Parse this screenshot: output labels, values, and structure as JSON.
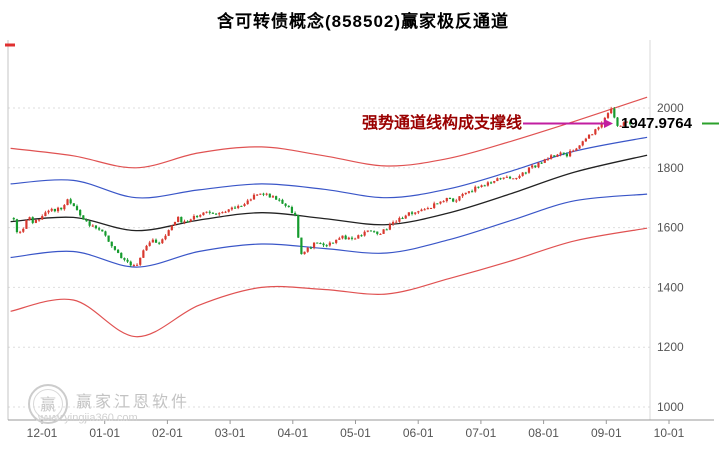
{
  "title": "含可转债概念(858502)赢家极反通道",
  "annotation": {
    "text": "强势通道线构成支撑线",
    "price_label": "1947.9764"
  },
  "watermark": {
    "brand": "赢家江恩软件",
    "url": "www.yingjia360.com",
    "logo_glyph": "赢"
  },
  "chart_data": {
    "type": "candlestick",
    "title": "含可转债概念(858502)赢家极反通道",
    "x_axis": {
      "tick_labels": [
        "12-01",
        "01-01",
        "02-01",
        "03-01",
        "04-01",
        "05-01",
        "06-01",
        "07-01",
        "08-01",
        "09-01",
        "10-01"
      ],
      "unit": "month index (0 = 12-01)"
    },
    "y_axis": {
      "tick_labels": [
        2000,
        1800,
        1600,
        1400,
        1200,
        1000
      ],
      "range": [
        1000,
        2050
      ]
    },
    "grid": "dotted-horizontal",
    "current_price": 1947.9764,
    "n_candles": 196,
    "t_range": [
      -0.45,
      9.38
    ],
    "candle_colors": {
      "up": "#d8382e",
      "down": "#169b2e"
    },
    "close_keypoints": [
      [
        -0.45,
        1628
      ],
      [
        -0.38,
        1572
      ],
      [
        -0.3,
        1592
      ],
      [
        -0.22,
        1636
      ],
      [
        -0.12,
        1614
      ],
      [
        0.0,
        1640
      ],
      [
        0.15,
        1656
      ],
      [
        0.3,
        1666
      ],
      [
        0.42,
        1692
      ],
      [
        0.55,
        1660
      ],
      [
        0.7,
        1616
      ],
      [
        0.85,
        1600
      ],
      [
        1.0,
        1584
      ],
      [
        1.1,
        1544
      ],
      [
        1.25,
        1500
      ],
      [
        1.4,
        1482
      ],
      [
        1.5,
        1468
      ],
      [
        1.62,
        1530
      ],
      [
        1.75,
        1560
      ],
      [
        1.9,
        1546
      ],
      [
        2.0,
        1590
      ],
      [
        2.15,
        1632
      ],
      [
        2.3,
        1614
      ],
      [
        2.45,
        1640
      ],
      [
        2.6,
        1652
      ],
      [
        2.75,
        1644
      ],
      [
        2.9,
        1656
      ],
      [
        3.05,
        1664
      ],
      [
        3.2,
        1680
      ],
      [
        3.35,
        1700
      ],
      [
        3.5,
        1716
      ],
      [
        3.65,
        1706
      ],
      [
        3.8,
        1690
      ],
      [
        3.95,
        1664
      ],
      [
        4.05,
        1638
      ],
      [
        4.12,
        1506
      ],
      [
        4.2,
        1520
      ],
      [
        4.35,
        1546
      ],
      [
        4.5,
        1540
      ],
      [
        4.65,
        1556
      ],
      [
        4.8,
        1570
      ],
      [
        4.95,
        1560
      ],
      [
        5.1,
        1576
      ],
      [
        5.25,
        1590
      ],
      [
        5.4,
        1580
      ],
      [
        5.55,
        1606
      ],
      [
        5.7,
        1626
      ],
      [
        5.85,
        1645
      ],
      [
        6.0,
        1652
      ],
      [
        6.15,
        1666
      ],
      [
        6.3,
        1680
      ],
      [
        6.45,
        1695
      ],
      [
        6.6,
        1690
      ],
      [
        6.75,
        1712
      ],
      [
        6.9,
        1730
      ],
      [
        7.05,
        1744
      ],
      [
        7.2,
        1760
      ],
      [
        7.35,
        1770
      ],
      [
        7.5,
        1762
      ],
      [
        7.65,
        1780
      ],
      [
        7.8,
        1800
      ],
      [
        7.95,
        1816
      ],
      [
        8.1,
        1836
      ],
      [
        8.25,
        1850
      ],
      [
        8.35,
        1840
      ],
      [
        8.5,
        1866
      ],
      [
        8.65,
        1896
      ],
      [
        8.8,
        1920
      ],
      [
        8.9,
        1944
      ],
      [
        9.0,
        1974
      ],
      [
        9.08,
        1992
      ],
      [
        9.15,
        1952
      ],
      [
        9.22,
        1936
      ],
      [
        9.3,
        1956
      ],
      [
        9.38,
        1948
      ]
    ],
    "channel_lines": [
      {
        "name": "outer-upper-red",
        "color": "#e05252",
        "width": 1.2,
        "points": [
          [
            -0.5,
            1865
          ],
          [
            0.5,
            1840
          ],
          [
            1.5,
            1800
          ],
          [
            2.5,
            1850
          ],
          [
            3.5,
            1870
          ],
          [
            4.5,
            1840
          ],
          [
            5.5,
            1806
          ],
          [
            6.5,
            1832
          ],
          [
            7.5,
            1890
          ],
          [
            8.5,
            1956
          ],
          [
            9.65,
            2036
          ]
        ]
      },
      {
        "name": "inner-upper-blue",
        "color": "#3a56c8",
        "width": 1.2,
        "points": [
          [
            -0.5,
            1746
          ],
          [
            0.5,
            1758
          ],
          [
            1.5,
            1700
          ],
          [
            2.5,
            1726
          ],
          [
            3.5,
            1746
          ],
          [
            4.5,
            1728
          ],
          [
            5.5,
            1700
          ],
          [
            6.5,
            1730
          ],
          [
            7.5,
            1790
          ],
          [
            8.5,
            1856
          ],
          [
            9.65,
            1902
          ]
        ]
      },
      {
        "name": "mid-black",
        "color": "#222222",
        "width": 1.3,
        "points": [
          [
            -0.5,
            1620
          ],
          [
            0.5,
            1634
          ],
          [
            1.5,
            1590
          ],
          [
            2.5,
            1625
          ],
          [
            3.5,
            1650
          ],
          [
            4.5,
            1630
          ],
          [
            5.5,
            1610
          ],
          [
            6.5,
            1650
          ],
          [
            7.5,
            1715
          ],
          [
            8.5,
            1786
          ],
          [
            9.65,
            1842
          ]
        ]
      },
      {
        "name": "inner-lower-blue",
        "color": "#3a56c8",
        "width": 1.2,
        "points": [
          [
            -0.5,
            1500
          ],
          [
            0.5,
            1520
          ],
          [
            1.5,
            1468
          ],
          [
            2.5,
            1520
          ],
          [
            3.5,
            1545
          ],
          [
            4.5,
            1530
          ],
          [
            5.5,
            1515
          ],
          [
            6.5,
            1560
          ],
          [
            7.5,
            1625
          ],
          [
            8.5,
            1690
          ],
          [
            9.65,
            1712
          ]
        ]
      },
      {
        "name": "outer-lower-red",
        "color": "#e05252",
        "width": 1.2,
        "points": [
          [
            -0.5,
            1320
          ],
          [
            0.5,
            1358
          ],
          [
            1.5,
            1235
          ],
          [
            2.5,
            1340
          ],
          [
            3.5,
            1400
          ],
          [
            4.5,
            1393
          ],
          [
            5.5,
            1378
          ],
          [
            6.5,
            1430
          ],
          [
            7.5,
            1490
          ],
          [
            8.5,
            1556
          ],
          [
            9.65,
            1598
          ]
        ]
      }
    ],
    "support_line": {
      "price": 1947.9764,
      "color": "#c21ea0",
      "annotation": "强势通道线构成支撑线",
      "label": "1947.9764",
      "marker_dash_color": "#2ba12b"
    }
  }
}
